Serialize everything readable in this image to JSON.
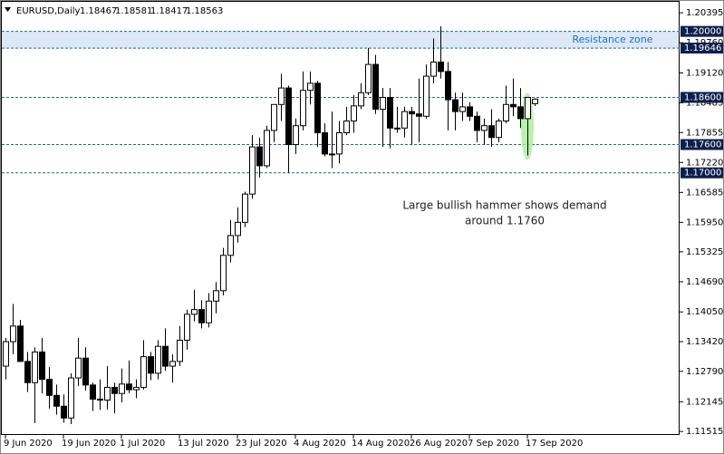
{
  "chart_data": {
    "type": "candlestick",
    "symbol": "EURUSD,Daily",
    "categories": [
      "9 Jun 2020",
      null,
      null,
      null,
      null,
      null,
      null,
      null,
      "19 Jun 2020",
      null,
      null,
      null,
      null,
      null,
      null,
      null,
      "1 Jul 2020",
      null,
      null,
      null,
      null,
      null,
      null,
      null,
      "13 Jul 2020",
      null,
      null,
      null,
      null,
      null,
      null,
      null,
      "23 Jul 2020",
      null,
      null,
      null,
      null,
      null,
      null,
      null,
      "4 Aug 2020",
      null,
      null,
      null,
      null,
      null,
      null,
      null,
      "14 Aug 2020",
      null,
      null,
      null,
      null,
      null,
      null,
      null,
      "26 Aug 2020",
      null,
      null,
      null,
      null,
      null,
      null,
      null,
      "7 Sep 2020",
      null,
      null,
      null,
      null,
      null,
      null,
      null,
      "17 Sep 2020",
      null
    ],
    "open": [
      1.129,
      1.1342,
      1.1375,
      1.13,
      1.1255,
      1.132,
      1.1262,
      1.1228,
      1.1205,
      1.118,
      1.1265,
      1.1307,
      1.125,
      1.122,
      1.1218,
      1.1245,
      1.1232,
      1.1252,
      1.124,
      1.1245,
      1.131,
      1.1275,
      1.1332,
      1.129,
      1.13,
      1.1345,
      1.14,
      1.141,
      1.1382,
      1.1428,
      1.145,
      1.1525,
      1.1567,
      1.1595,
      1.1655,
      1.1755,
      1.1715,
      1.179,
      1.1845,
      1.188,
      1.176,
      1.18,
      1.1875,
      1.189,
      1.1785,
      1.174,
      1.174,
      1.1785,
      1.181,
      1.1842,
      1.187,
      1.193,
      1.1835,
      1.186,
      1.1795,
      1.1795,
      1.183,
      1.1825,
      1.182,
      1.1905,
      1.1935,
      1.1915,
      1.1855,
      1.183,
      1.184,
      1.182,
      1.179,
      1.18,
      1.1775,
      1.181,
      1.1845,
      1.184,
      1.1815,
      1.18467
    ],
    "high": [
      1.135,
      1.1422,
      1.1388,
      1.132,
      1.133,
      1.135,
      1.1288,
      1.1251,
      1.123,
      1.1275,
      1.135,
      1.133,
      1.1255,
      1.1262,
      1.129,
      1.1255,
      1.1285,
      1.1302,
      1.1262,
      1.1345,
      1.132,
      1.1345,
      1.137,
      1.1315,
      1.1375,
      1.141,
      1.1452,
      1.143,
      1.1445,
      1.1468,
      1.1541,
      1.16,
      1.1627,
      1.166,
      1.178,
      1.1775,
      1.18,
      1.1845,
      1.191,
      1.1885,
      1.1815,
      1.1915,
      1.1915,
      1.1895,
      1.1805,
      1.183,
      1.181,
      1.184,
      1.1865,
      1.189,
      1.1965,
      1.195,
      1.188,
      1.188,
      1.184,
      1.184,
      1.184,
      1.19,
      1.193,
      1.1985,
      1.2011,
      1.1935,
      1.187,
      1.187,
      1.185,
      1.183,
      1.1815,
      1.1835,
      1.1815,
      1.1885,
      1.19,
      1.188,
      1.186,
      1.18581
    ],
    "low": [
      1.1262,
      1.1315,
      1.1303,
      1.1235,
      1.1169,
      1.1232,
      1.12,
      1.1187,
      1.117,
      1.1167,
      1.1248,
      1.1238,
      1.1195,
      1.1197,
      1.1198,
      1.119,
      1.1213,
      1.1233,
      1.1222,
      1.124,
      1.126,
      1.1262,
      1.128,
      1.1255,
      1.129,
      1.1325,
      1.1385,
      1.137,
      1.1372,
      1.1402,
      1.144,
      1.151,
      1.1552,
      1.1585,
      1.1645,
      1.169,
      1.171,
      1.1765,
      1.181,
      1.17,
      1.174,
      1.179,
      1.1845,
      1.1755,
      1.1735,
      1.171,
      1.172,
      1.178,
      1.1785,
      1.1835,
      1.1865,
      1.1825,
      1.1755,
      1.1752,
      1.1785,
      1.1775,
      1.176,
      1.1765,
      1.1815,
      1.189,
      1.19,
      1.179,
      1.179,
      1.181,
      1.181,
      1.1765,
      1.176,
      1.1755,
      1.1765,
      1.1805,
      1.182,
      1.1795,
      1.1737,
      1.18417
    ],
    "close": [
      1.1342,
      1.1375,
      1.13,
      1.1255,
      1.132,
      1.1262,
      1.1228,
      1.1205,
      1.118,
      1.1265,
      1.1307,
      1.125,
      1.122,
      1.1218,
      1.1245,
      1.1232,
      1.1252,
      1.124,
      1.1245,
      1.131,
      1.1275,
      1.1332,
      1.129,
      1.13,
      1.1345,
      1.14,
      1.141,
      1.1382,
      1.1428,
      1.145,
      1.1525,
      1.1567,
      1.1595,
      1.1655,
      1.1755,
      1.1715,
      1.179,
      1.1845,
      1.188,
      1.176,
      1.18,
      1.1875,
      1.189,
      1.1785,
      1.174,
      1.174,
      1.1785,
      1.181,
      1.1842,
      1.187,
      1.193,
      1.1835,
      1.186,
      1.1795,
      1.1795,
      1.183,
      1.1825,
      1.182,
      1.1905,
      1.1935,
      1.1915,
      1.1855,
      1.183,
      1.184,
      1.182,
      1.179,
      1.18,
      1.1775,
      1.181,
      1.1845,
      1.184,
      1.1815,
      1.186,
      1.18563
    ],
    "up_color": "#ffffff",
    "down_color": "#000000",
    "ylim": [
      1.1144,
      1.2057
    ],
    "yticks": [
      1.20395,
      {
        "value": 1.1976,
        "label": "1.19760"
      },
      {
        "value": 1.1912,
        "label": "1.19120"
      },
      1.18485,
      1.17855,
      {
        "value": 1.1722,
        "label": "1.17220"
      },
      1.16585,
      {
        "value": 1.1595,
        "label": "1.15950"
      },
      1.15325,
      {
        "value": 1.1469,
        "label": "1.14690"
      },
      {
        "value": 1.1405,
        "label": "1.14050"
      },
      {
        "value": 1.1342,
        "label": "1.13420"
      },
      {
        "value": 1.1279,
        "label": "1.12790"
      },
      1.12145,
      1.11515
    ],
    "levels": [
      {
        "value": 1.2,
        "label": "1.20000"
      },
      {
        "value": 1.19646,
        "label": "1.19646"
      },
      {
        "value": 1.186,
        "label": "1.18600"
      },
      {
        "value": 1.176,
        "label": "1.17600"
      },
      {
        "value": 1.17,
        "label": "1.17000"
      }
    ],
    "zone": {
      "label": "Resistance zone",
      "color": "#dce8f6"
    },
    "annotation": [
      "Large bullish hammer shows demand",
      "around 1.1760"
    ]
  }
}
